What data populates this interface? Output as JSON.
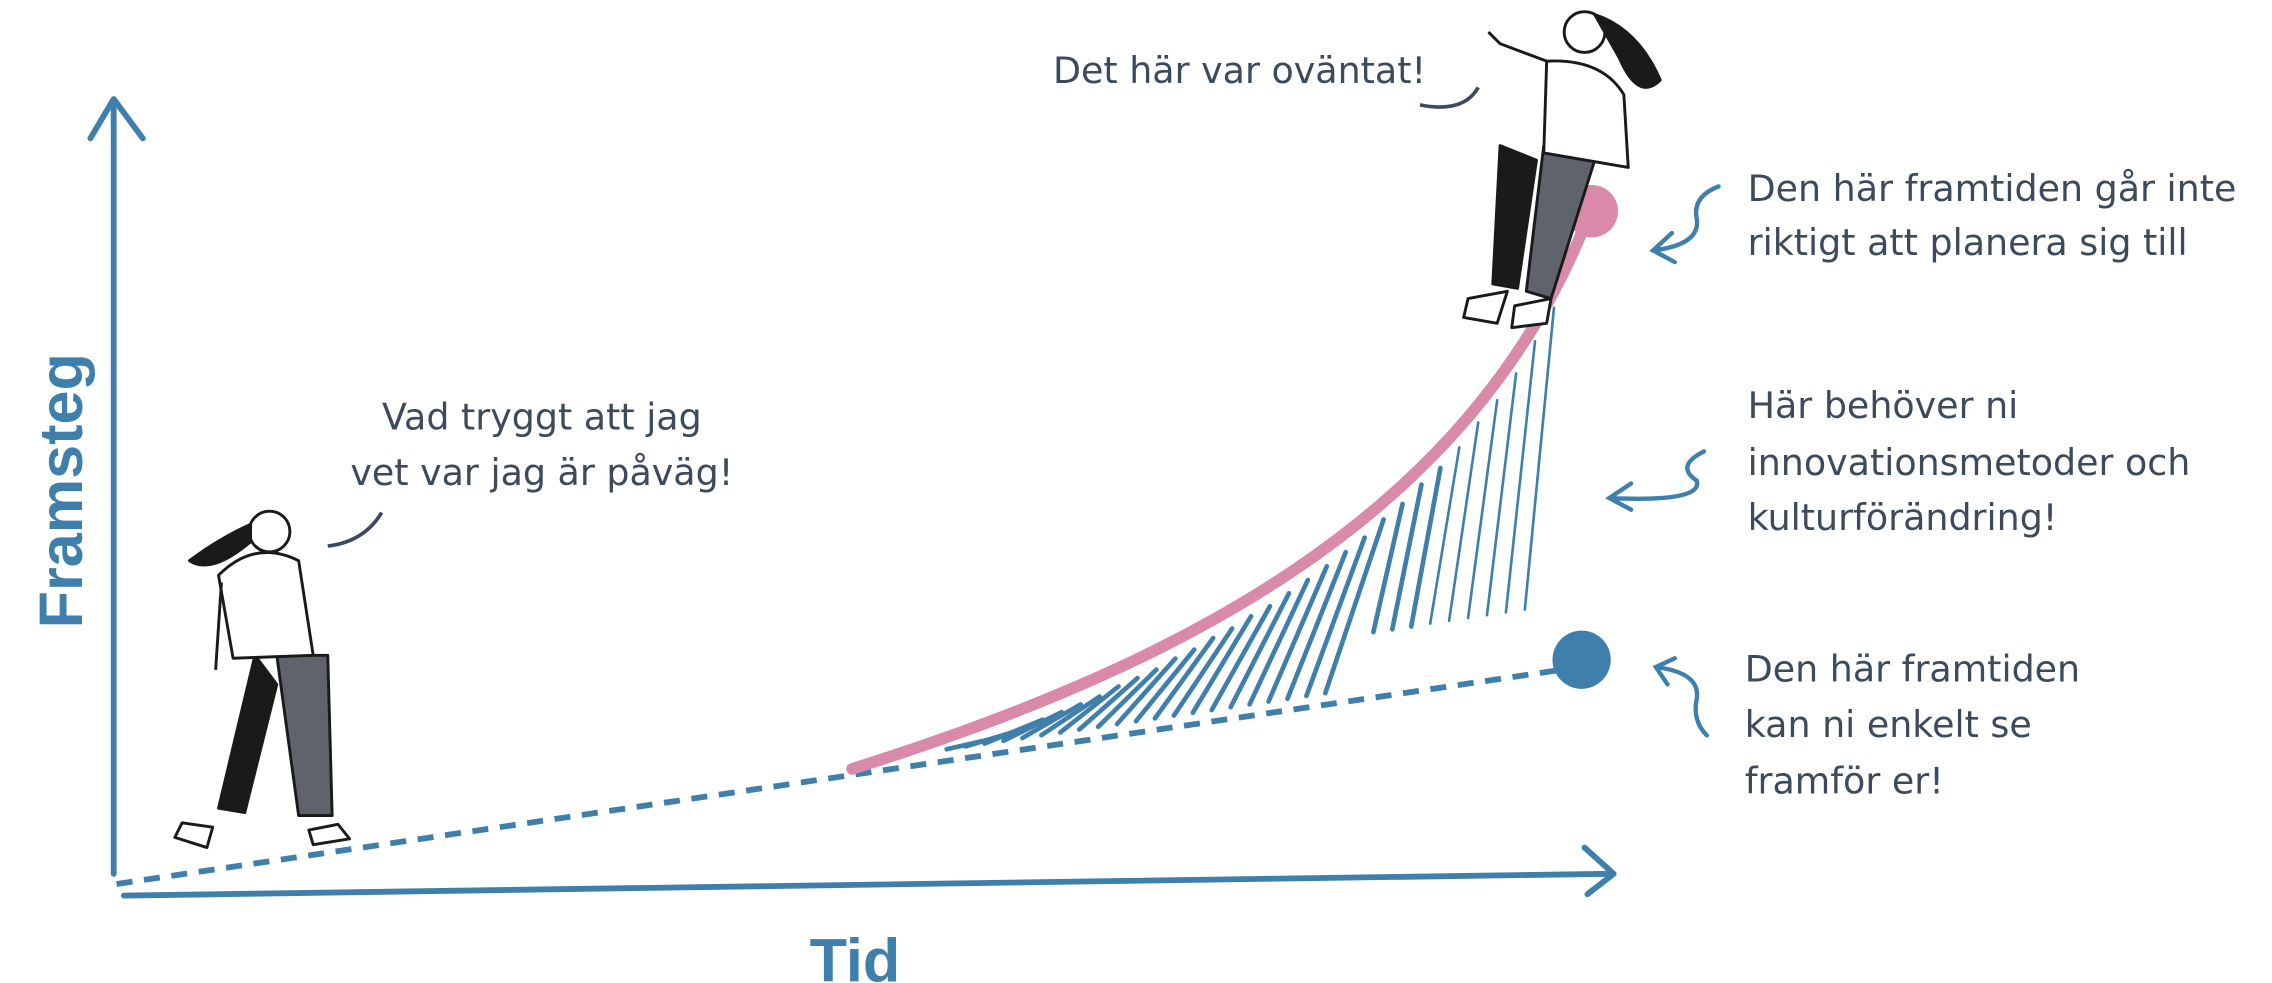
{
  "axes": {
    "y_label": "Framsteg",
    "x_label": "Tid"
  },
  "speech": [
    {
      "lines": [
        "Vad tryggt att jag",
        "vet var jag är påväg!"
      ]
    },
    {
      "lines": [
        "Det här var oväntat!"
      ]
    }
  ],
  "annotations": [
    {
      "lines": [
        "Den här framtiden går inte",
        "riktigt att planera sig till"
      ]
    },
    {
      "lines": [
        "Här behöver ni",
        "innovationsmetoder och",
        "kulturförändring!"
      ]
    },
    {
      "lines": [
        "Den här framtiden",
        "kan ni enkelt se",
        "framför er!"
      ]
    }
  ]
}
